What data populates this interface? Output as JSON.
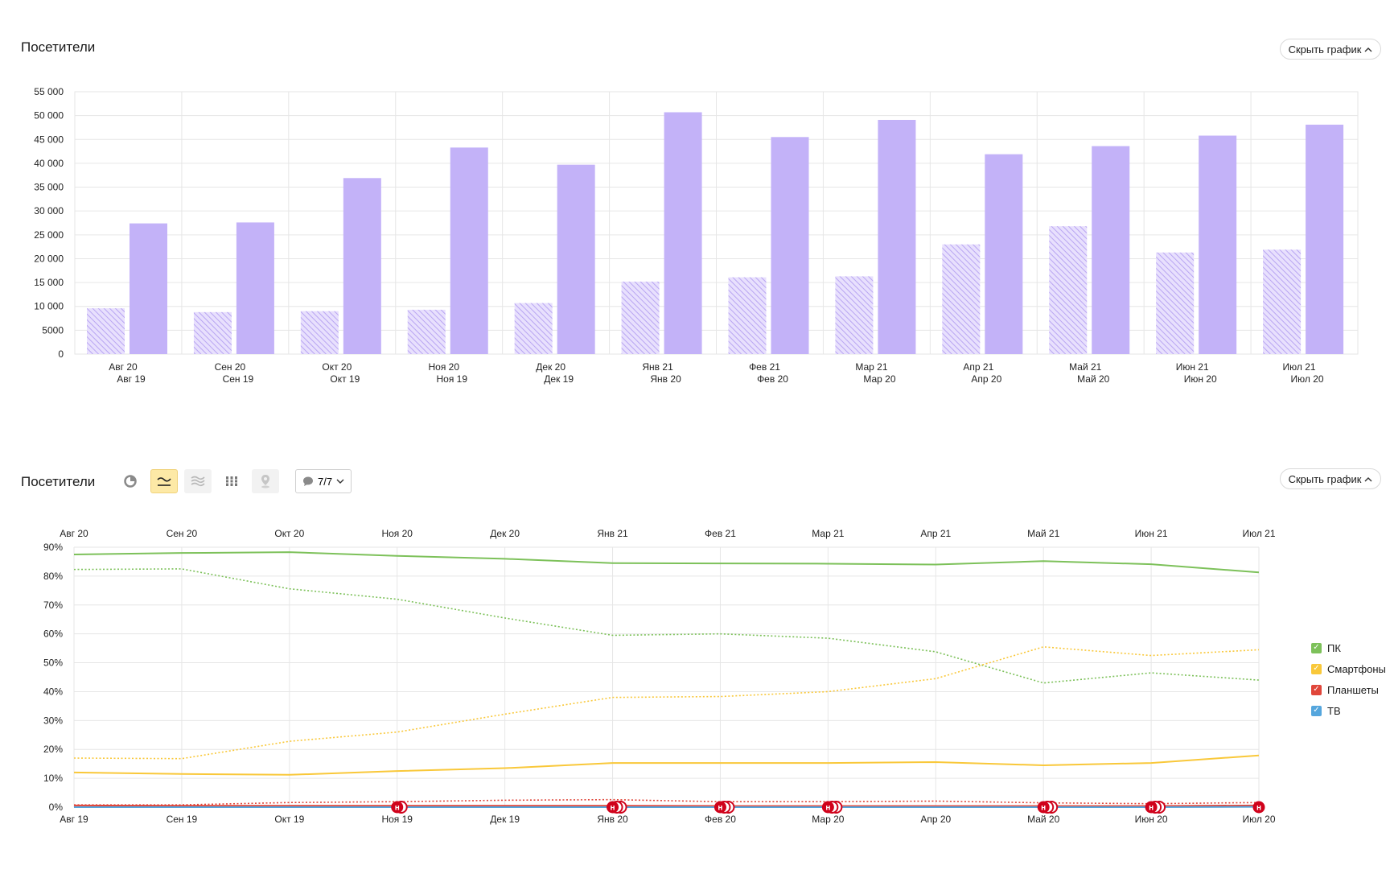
{
  "top_section": {
    "title": "Посетители",
    "hide_label": "Скрыть график"
  },
  "bottom_section": {
    "title": "Посетители",
    "hide_label": "Скрыть график",
    "comments_label": "7/7",
    "legend": [
      {
        "label": "ПК",
        "color": "#7dc15a"
      },
      {
        "label": "Смартфоны",
        "color": "#f9c83a"
      },
      {
        "label": "Планшеты",
        "color": "#e0463a"
      },
      {
        "label": "ТВ",
        "color": "#55a6dd"
      }
    ]
  },
  "icons": {
    "chart_type_pie": "pie-icon",
    "chart_type_line": "line-chart-icon",
    "chart_type_area": "area-chart-icon",
    "chart_type_bar": "bar-chart-icon",
    "chart_type_map": "map-icon",
    "comments": "comment-icon",
    "chevron": "chevron-icon",
    "annotation": "annotation-marker-icon"
  },
  "chart_data": [
    {
      "type": "bar",
      "categories_primary": [
        "Авг 20",
        "Сен 20",
        "Окт 20",
        "Ноя 20",
        "Дек 20",
        "Янв 21",
        "Фев 21",
        "Мар 21",
        "Апр 21",
        "Май 21",
        "Июн 21",
        "Июл 21"
      ],
      "categories_secondary": [
        "Авг 19",
        "Сен 19",
        "Окт 19",
        "Ноя 19",
        "Дек 19",
        "Янв 20",
        "Фев 20",
        "Мар 20",
        "Апр 20",
        "Май 20",
        "Июн 20",
        "Июл 20"
      ],
      "series": [
        {
          "period": "previous",
          "style": "hatched",
          "values": [
            9600,
            8800,
            9000,
            9300,
            10700,
            15200,
            16100,
            16300,
            23000,
            26800,
            21300,
            21900
          ]
        },
        {
          "period": "current",
          "style": "solid",
          "values": [
            27400,
            27600,
            36900,
            43300,
            39700,
            50700,
            45500,
            49100,
            41900,
            43600,
            45800,
            48100
          ]
        }
      ],
      "color": "#c3b2f8",
      "ylim": [
        0,
        55000
      ],
      "yticks": [
        "0",
        "5000",
        "10 000",
        "15 000",
        "20 000",
        "25 000",
        "30 000",
        "35 000",
        "40 000",
        "45 000",
        "50 000",
        "55 000"
      ],
      "grid": true
    },
    {
      "type": "line",
      "x_top_labels": [
        "Авг 20",
        "Сен 20",
        "Окт 20",
        "Ноя 20",
        "Дек 20",
        "Янв 21",
        "Фев 21",
        "Мар 21",
        "Апр 21",
        "Май 21",
        "Июн 21",
        "Июл 21"
      ],
      "x_bottom_labels": [
        "Авг 19",
        "Сен 19",
        "Окт 19",
        "Ноя 19",
        "Дек 19",
        "Янв 20",
        "Фев 20",
        "Мар 20",
        "Апр 20",
        "Май 20",
        "Июн 20",
        "Июл 20"
      ],
      "ylim": [
        0,
        90
      ],
      "yticks": [
        "0%",
        "10%",
        "20%",
        "30%",
        "40%",
        "50%",
        "60%",
        "70%",
        "80%",
        "90%"
      ],
      "grid": true,
      "legend_position": "right",
      "series": [
        {
          "name": "ПК",
          "period": "current",
          "style": "solid",
          "color": "#7dc15a",
          "values": [
            87.5,
            88.0,
            88.3,
            87.0,
            86.0,
            84.5,
            84.4,
            84.3,
            84.0,
            85.2,
            84.1,
            81.3
          ]
        },
        {
          "name": "ПК",
          "period": "previous",
          "style": "dotted",
          "color": "#7dc15a",
          "values": [
            82.3,
            82.5,
            75.6,
            72.0,
            65.5,
            59.5,
            60.0,
            58.5,
            53.8,
            43.0,
            46.5,
            44.0
          ]
        },
        {
          "name": "Смартфоны",
          "period": "current",
          "style": "solid",
          "color": "#f9c83a",
          "values": [
            12.0,
            11.5,
            11.2,
            12.5,
            13.5,
            15.3,
            15.3,
            15.3,
            15.6,
            14.5,
            15.3,
            17.9
          ]
        },
        {
          "name": "Смартфоны",
          "period": "previous",
          "style": "dotted",
          "color": "#f9c83a",
          "values": [
            17.0,
            16.8,
            22.8,
            26.0,
            32.2,
            38.0,
            38.3,
            40.0,
            44.5,
            55.5,
            52.5,
            54.5
          ]
        },
        {
          "name": "Планшеты",
          "period": "current",
          "style": "solid",
          "color": "#e0463a",
          "values": [
            0.6,
            0.5,
            0.5,
            0.5,
            0.5,
            0.5,
            0.4,
            0.4,
            0.4,
            0.4,
            0.4,
            0.6
          ]
        },
        {
          "name": "Планшеты",
          "period": "previous",
          "style": "dotted",
          "color": "#e0463a",
          "values": [
            0.8,
            0.8,
            1.6,
            1.9,
            2.4,
            2.6,
            1.9,
            1.9,
            2.1,
            1.5,
            1.2,
            1.6
          ]
        },
        {
          "name": "ТВ",
          "period": "current",
          "style": "solid",
          "color": "#55a6dd",
          "values": [
            0.0,
            0.0,
            0.0,
            0.0,
            0.0,
            0.0,
            0.0,
            0.0,
            0.0,
            0.0,
            0.0,
            0.1
          ]
        }
      ],
      "annotations": [
        {
          "x_index": 3,
          "count": 2,
          "label": "н"
        },
        {
          "x_index": 5,
          "count": 3,
          "label": "н"
        },
        {
          "x_index": 6,
          "count": 3,
          "label": "н"
        },
        {
          "x_index": 7,
          "count": 3,
          "label": "н"
        },
        {
          "x_index": 9,
          "count": 3,
          "label": "н"
        },
        {
          "x_index": 10,
          "count": 3,
          "label": "н"
        },
        {
          "x_index": 11,
          "count": 1,
          "label": "н"
        }
      ]
    }
  ]
}
